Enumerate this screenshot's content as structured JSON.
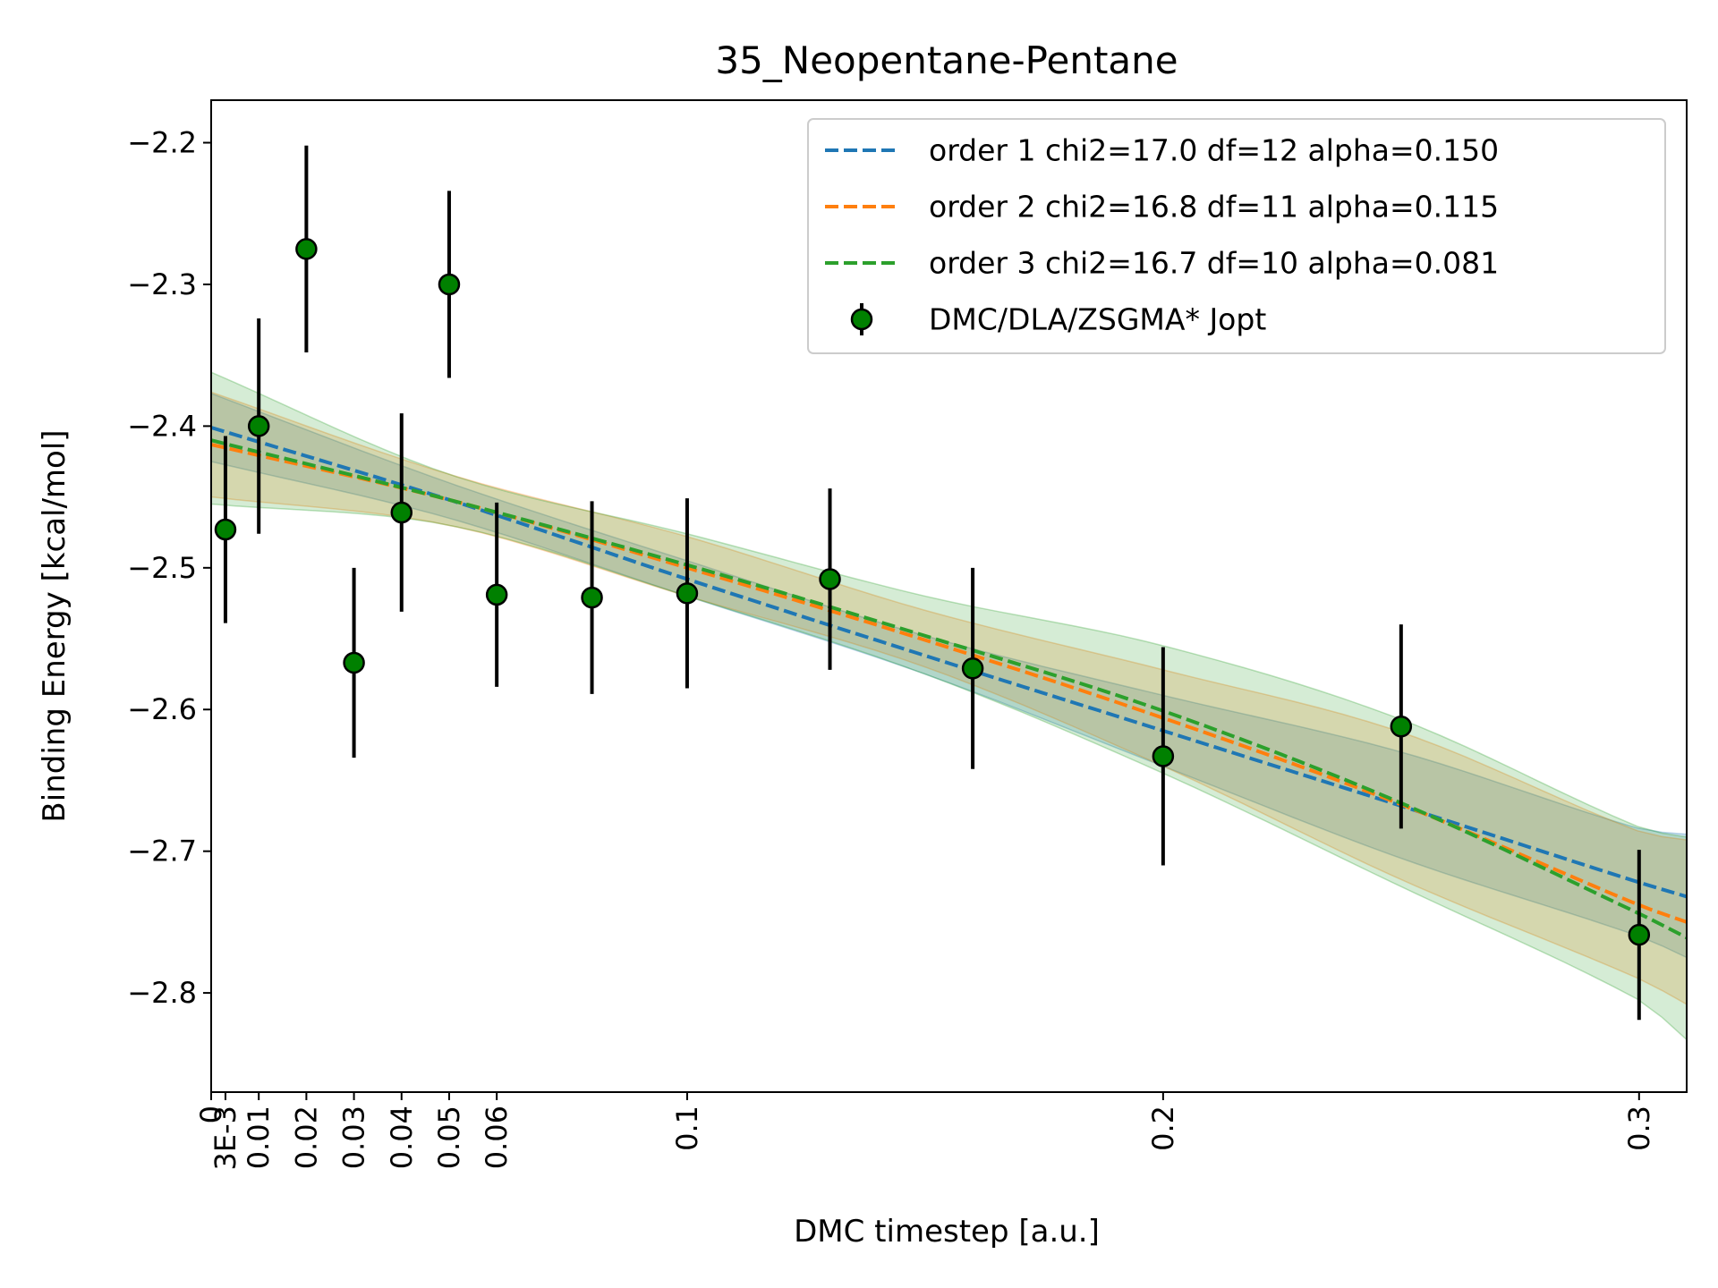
{
  "chart_data": {
    "type": "scatter",
    "title": "35_Neopentane-Pentane",
    "xlabel": "DMC timestep [a.u.]",
    "ylabel": "Binding Energy [kcal/mol]",
    "xlim": [
      0,
      0.31
    ],
    "ylim": [
      -2.87,
      -2.17
    ],
    "x_ticks": [
      {
        "value": 0,
        "label": "0"
      },
      {
        "value": 0.003,
        "label": "3E-3"
      },
      {
        "value": 0.01,
        "label": "0.01"
      },
      {
        "value": 0.02,
        "label": "0.02"
      },
      {
        "value": 0.03,
        "label": "0.03"
      },
      {
        "value": 0.04,
        "label": "0.04"
      },
      {
        "value": 0.05,
        "label": "0.05"
      },
      {
        "value": 0.06,
        "label": "0.06"
      },
      {
        "value": 0.1,
        "label": "0.1"
      },
      {
        "value": 0.2,
        "label": "0.2"
      },
      {
        "value": 0.3,
        "label": "0.3"
      }
    ],
    "y_ticks": [
      {
        "value": -2.2,
        "label": "−2.2"
      },
      {
        "value": -2.3,
        "label": "−2.3"
      },
      {
        "value": -2.4,
        "label": "−2.4"
      },
      {
        "value": -2.5,
        "label": "−2.5"
      },
      {
        "value": -2.6,
        "label": "−2.6"
      },
      {
        "value": -2.7,
        "label": "−2.7"
      },
      {
        "value": -2.8,
        "label": "−2.8"
      }
    ],
    "data_series": {
      "name": "DMC/DLA/ZSGMA* Jopt",
      "color": "#008000",
      "points": [
        {
          "x": 0.003,
          "y": -2.473,
          "err": 0.066
        },
        {
          "x": 0.01,
          "y": -2.4,
          "err": 0.076
        },
        {
          "x": 0.02,
          "y": -2.275,
          "err": 0.073
        },
        {
          "x": 0.03,
          "y": -2.567,
          "err": 0.067
        },
        {
          "x": 0.04,
          "y": -2.461,
          "err": 0.07
        },
        {
          "x": 0.05,
          "y": -2.3,
          "err": 0.066
        },
        {
          "x": 0.06,
          "y": -2.519,
          "err": 0.065
        },
        {
          "x": 0.08,
          "y": -2.521,
          "err": 0.068
        },
        {
          "x": 0.1,
          "y": -2.518,
          "err": 0.067
        },
        {
          "x": 0.13,
          "y": -2.508,
          "err": 0.064
        },
        {
          "x": 0.16,
          "y": -2.571,
          "err": 0.071
        },
        {
          "x": 0.2,
          "y": -2.633,
          "err": 0.077
        },
        {
          "x": 0.25,
          "y": -2.612,
          "err": 0.072
        },
        {
          "x": 0.3,
          "y": -2.759,
          "err": 0.06
        }
      ]
    },
    "fits": [
      {
        "name": "order 1 chi2=17.0 df=12 alpha=0.150",
        "color": "#1f77b4",
        "x": [
          0,
          0.05,
          0.1,
          0.15,
          0.2,
          0.25,
          0.3,
          0.31
        ],
        "y": [
          -2.401,
          -2.452,
          -2.508,
          -2.562,
          -2.615,
          -2.668,
          -2.722,
          -2.732
        ],
        "band_lo": [
          -2.425,
          -2.465,
          -2.52,
          -2.575,
          -2.64,
          -2.705,
          -2.76,
          -2.775
        ],
        "band_hi": [
          -2.377,
          -2.44,
          -2.495,
          -2.548,
          -2.59,
          -2.63,
          -2.684,
          -2.688
        ]
      },
      {
        "name": "order 2 chi2=16.8 df=11 alpha=0.115",
        "color": "#ff7f0e",
        "x": [
          0,
          0.05,
          0.1,
          0.15,
          0.2,
          0.25,
          0.3,
          0.31
        ],
        "y": [
          -2.413,
          -2.452,
          -2.5,
          -2.551,
          -2.606,
          -2.667,
          -2.738,
          -2.75
        ],
        "band_lo": [
          -2.45,
          -2.47,
          -2.52,
          -2.57,
          -2.64,
          -2.72,
          -2.79,
          -2.808
        ],
        "band_hi": [
          -2.376,
          -2.434,
          -2.478,
          -2.53,
          -2.572,
          -2.616,
          -2.686,
          -2.692
        ]
      },
      {
        "name": "order 3 chi2=16.7 df=10 alpha=0.081",
        "color": "#2ca02c",
        "x": [
          0,
          0.05,
          0.1,
          0.15,
          0.2,
          0.25,
          0.3,
          0.31
        ],
        "y": [
          -2.41,
          -2.452,
          -2.498,
          -2.548,
          -2.601,
          -2.666,
          -2.744,
          -2.761
        ],
        "band_lo": [
          -2.455,
          -2.47,
          -2.52,
          -2.575,
          -2.645,
          -2.725,
          -2.805,
          -2.833
        ],
        "band_hi": [
          -2.362,
          -2.434,
          -2.476,
          -2.52,
          -2.555,
          -2.607,
          -2.683,
          -2.69
        ]
      }
    ],
    "legend_position": "upper right",
    "grid": false
  }
}
